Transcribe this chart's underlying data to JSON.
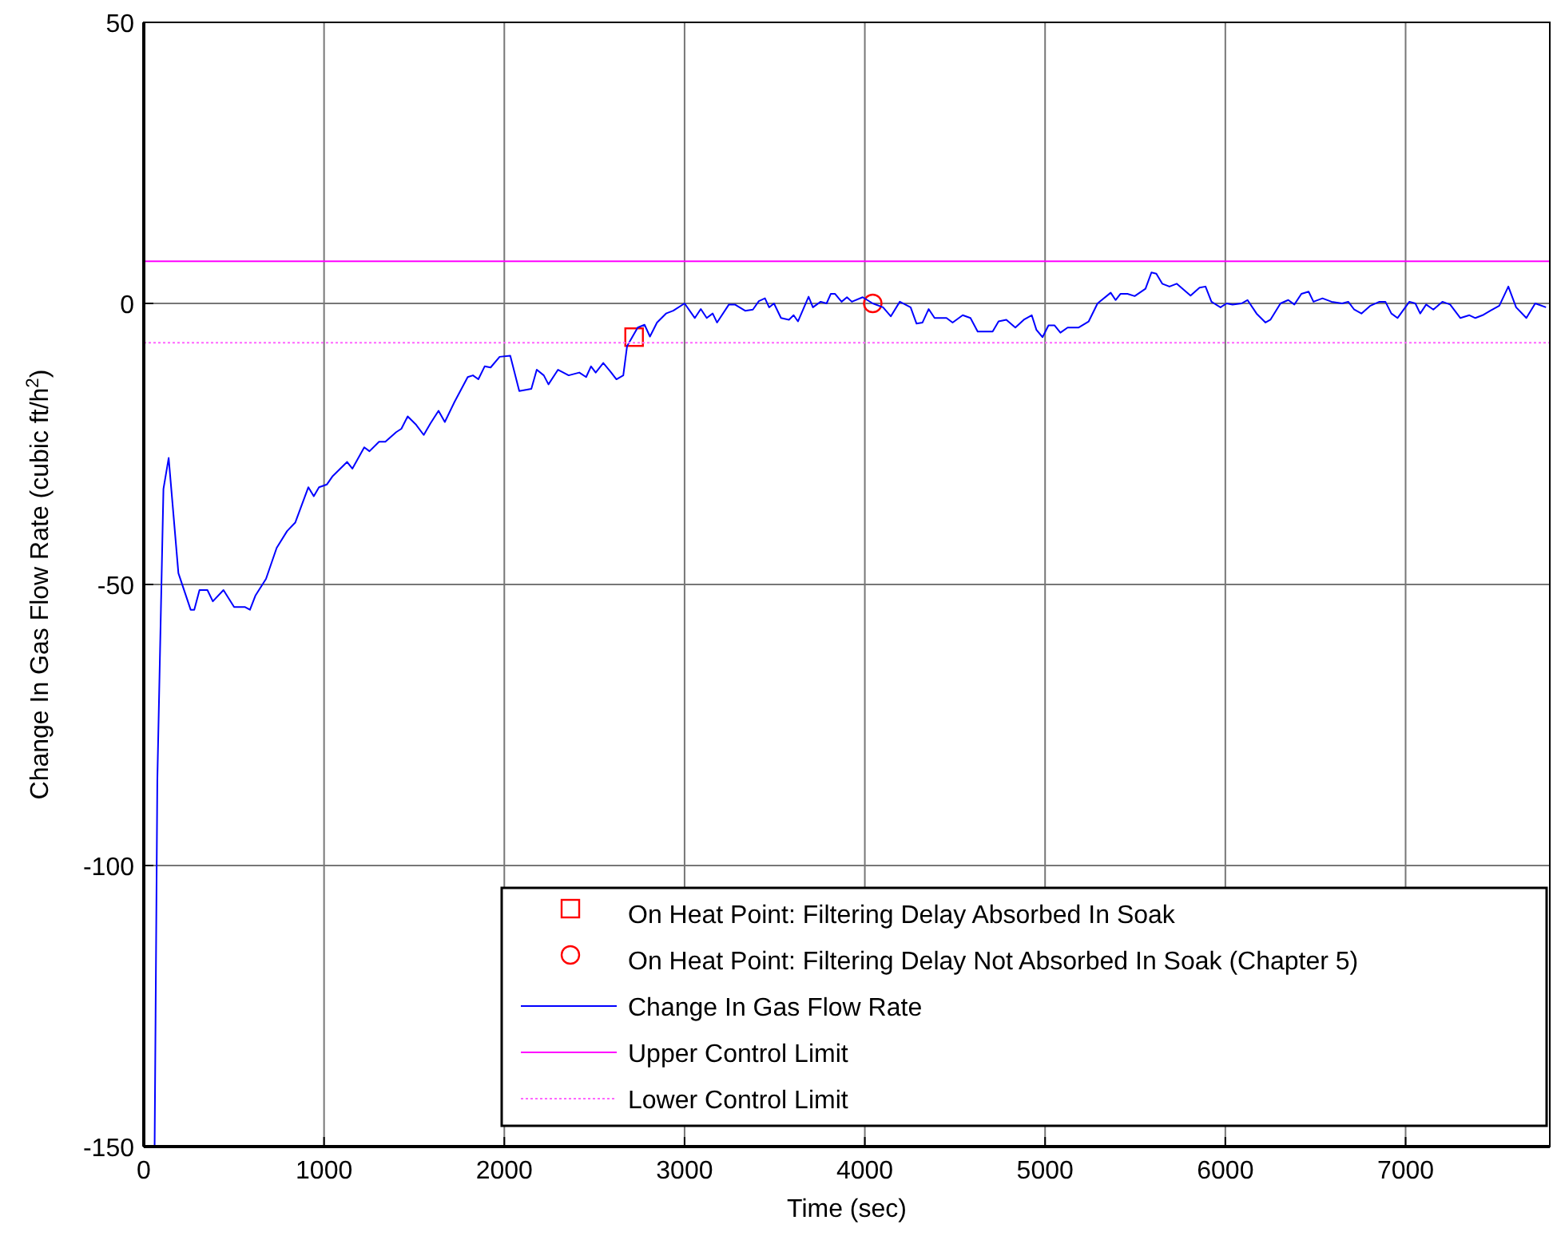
{
  "chart_data": {
    "type": "line",
    "xlabel": "Time (sec)",
    "ylabel": "Change In Gas Flow Rate (cubic ft/h$^{2}$)",
    "xlim": [
      0,
      7800
    ],
    "ylim": [
      -150,
      50
    ],
    "xticks": [
      0,
      1000,
      2000,
      3000,
      4000,
      5000,
      6000,
      7000
    ],
    "yticks": [
      -150,
      -100,
      -50,
      0,
      50
    ],
    "grid": true,
    "legend": "bottom right",
    "series": [
      {
        "name": "On Heat Point: Filtering Delay Absorbed In Soak",
        "type": "scatter",
        "marker": "square",
        "color": "#ff0000",
        "x": [
          2720
        ],
        "values": [
          -6
        ]
      },
      {
        "name": "On Heat Point: Filtering Delay Not Absorbed In Soak (Chapter 5)",
        "type": "scatter",
        "marker": "circle",
        "color": "#ff0000",
        "x": [
          4044
        ],
        "values": [
          0
        ]
      },
      {
        "name": "Change In Gas Flow Rate",
        "color": "#0000ff",
        "line_style": "solid",
        "x": [
          60,
          75,
          109,
          138,
          192,
          260,
          280,
          309,
          353,
          383,
          442,
          501,
          560,
          589,
          619,
          678,
          737,
          795,
          840,
          913,
          943,
          972,
          1016,
          1046,
          1128,
          1157,
          1223,
          1252,
          1305,
          1340,
          1400,
          1429,
          1464,
          1511,
          1553,
          1591,
          1635,
          1670,
          1724,
          1797,
          1826,
          1856,
          1891,
          1924,
          1974,
          2033,
          2083,
          2150,
          2180,
          2219,
          2245,
          2298,
          2357,
          2416,
          2454,
          2481,
          2507,
          2549,
          2593,
          2622,
          2660,
          2681,
          2740,
          2778,
          2808,
          2847,
          2897,
          2937,
          3000,
          3057,
          3090,
          3123,
          3156,
          3180,
          3246,
          3279,
          3336,
          3379,
          3412,
          3446,
          3469,
          3496,
          3535,
          3579,
          3605,
          3629,
          3688,
          3712,
          3755,
          3788,
          3811,
          3835,
          3871,
          3901,
          3928,
          3988,
          4044,
          4101,
          4144,
          4194,
          4254,
          4287,
          4320,
          4354,
          4387,
          4453,
          4487,
          4543,
          4586,
          4626,
          4709,
          4742,
          4785,
          4835,
          4882,
          4926,
          4952,
          4986,
          5019,
          5052,
          5085,
          5125,
          5185,
          5242,
          5291,
          5364,
          5391,
          5418,
          5457,
          5497,
          5557,
          5590,
          5617,
          5650,
          5690,
          5730,
          5807,
          5857,
          5890,
          5923,
          5973,
          6007,
          6040,
          6090,
          6123,
          6173,
          6223,
          6250,
          6306,
          6349,
          6383,
          6422,
          6462,
          6489,
          6539,
          6589,
          6648,
          6682,
          6715,
          6755,
          6805,
          6855,
          6888,
          6921,
          6955,
          7021,
          7054,
          7081,
          7114,
          7154,
          7204,
          7247,
          7304,
          7354,
          7387,
          7427,
          7470,
          7520,
          7570,
          7613,
          7670,
          7719,
          7779
        ],
        "values": [
          -150,
          -85,
          -33,
          -27.5,
          -48,
          -54.5,
          -54.5,
          -51,
          -51,
          -53,
          -51,
          -54,
          -54,
          -54.5,
          -52,
          -49,
          -43.5,
          -40.5,
          -39,
          -32.7,
          -34.3,
          -32.7,
          -32.2,
          -30.8,
          -28.2,
          -29.4,
          -25.6,
          -26.3,
          -24.6,
          -24.6,
          -22.9,
          -22.3,
          -20.1,
          -21.6,
          -23.4,
          -21.3,
          -19.1,
          -21.1,
          -17.5,
          -13.1,
          -12.8,
          -13.5,
          -11.2,
          -11.4,
          -9.5,
          -9.3,
          -15.6,
          -15.2,
          -11.8,
          -12.8,
          -14.4,
          -11.8,
          -12.8,
          -12.3,
          -13.1,
          -11.2,
          -12.3,
          -10.6,
          -12.3,
          -13.5,
          -12.8,
          -7.6,
          -4.3,
          -3.8,
          -5.9,
          -3.4,
          -1.8,
          -1.3,
          0,
          -2.6,
          -1,
          -2.6,
          -1.8,
          -3.4,
          -0.2,
          -0.2,
          -1.3,
          -1.1,
          0.4,
          0.9,
          -0.7,
          0,
          -2.6,
          -2.9,
          -2.1,
          -3.2,
          1.2,
          -0.7,
          0.3,
          0,
          1.7,
          1.7,
          0.3,
          1.1,
          0.3,
          1.1,
          0,
          -0.7,
          -2.3,
          0.3,
          -0.7,
          -3.6,
          -3.4,
          -1,
          -2.6,
          -2.6,
          -3.4,
          -2.1,
          -2.6,
          -5,
          -5,
          -3.2,
          -2.9,
          -4.3,
          -2.9,
          -2.1,
          -4.7,
          -6,
          -3.9,
          -3.9,
          -5.2,
          -4.3,
          -4.3,
          -3.2,
          0,
          1.9,
          0.6,
          1.7,
          1.7,
          1.3,
          2.6,
          5.5,
          5.3,
          3.5,
          3,
          3.5,
          1.4,
          2.8,
          3,
          0.3,
          -0.7,
          0,
          -0.2,
          0,
          0.6,
          -1.8,
          -3.4,
          -2.9,
          0,
          0.6,
          -0.2,
          1.7,
          2.1,
          0.3,
          0.9,
          0.3,
          0,
          0.3,
          -1.1,
          -1.8,
          -0.4,
          0.3,
          0.3,
          -1.8,
          -2.6,
          0.3,
          0,
          -1.8,
          -0.2,
          -1.1,
          0.3,
          -0.2,
          -2.6,
          -2.1,
          -2.6,
          -2.1,
          -1.3,
          -0.4,
          3,
          -0.7,
          -2.6,
          0,
          -0.7
        ]
      },
      {
        "name": "Upper Control Limit",
        "color": "#ff00ff",
        "line_style": "solid",
        "x": [
          0,
          7800
        ],
        "values": [
          7.5,
          7.5
        ]
      },
      {
        "name": "Lower Control Limit",
        "color": "#ff66ff",
        "line_style": "dotted",
        "x": [
          0,
          7800
        ],
        "values": [
          -7,
          -7
        ]
      }
    ]
  }
}
